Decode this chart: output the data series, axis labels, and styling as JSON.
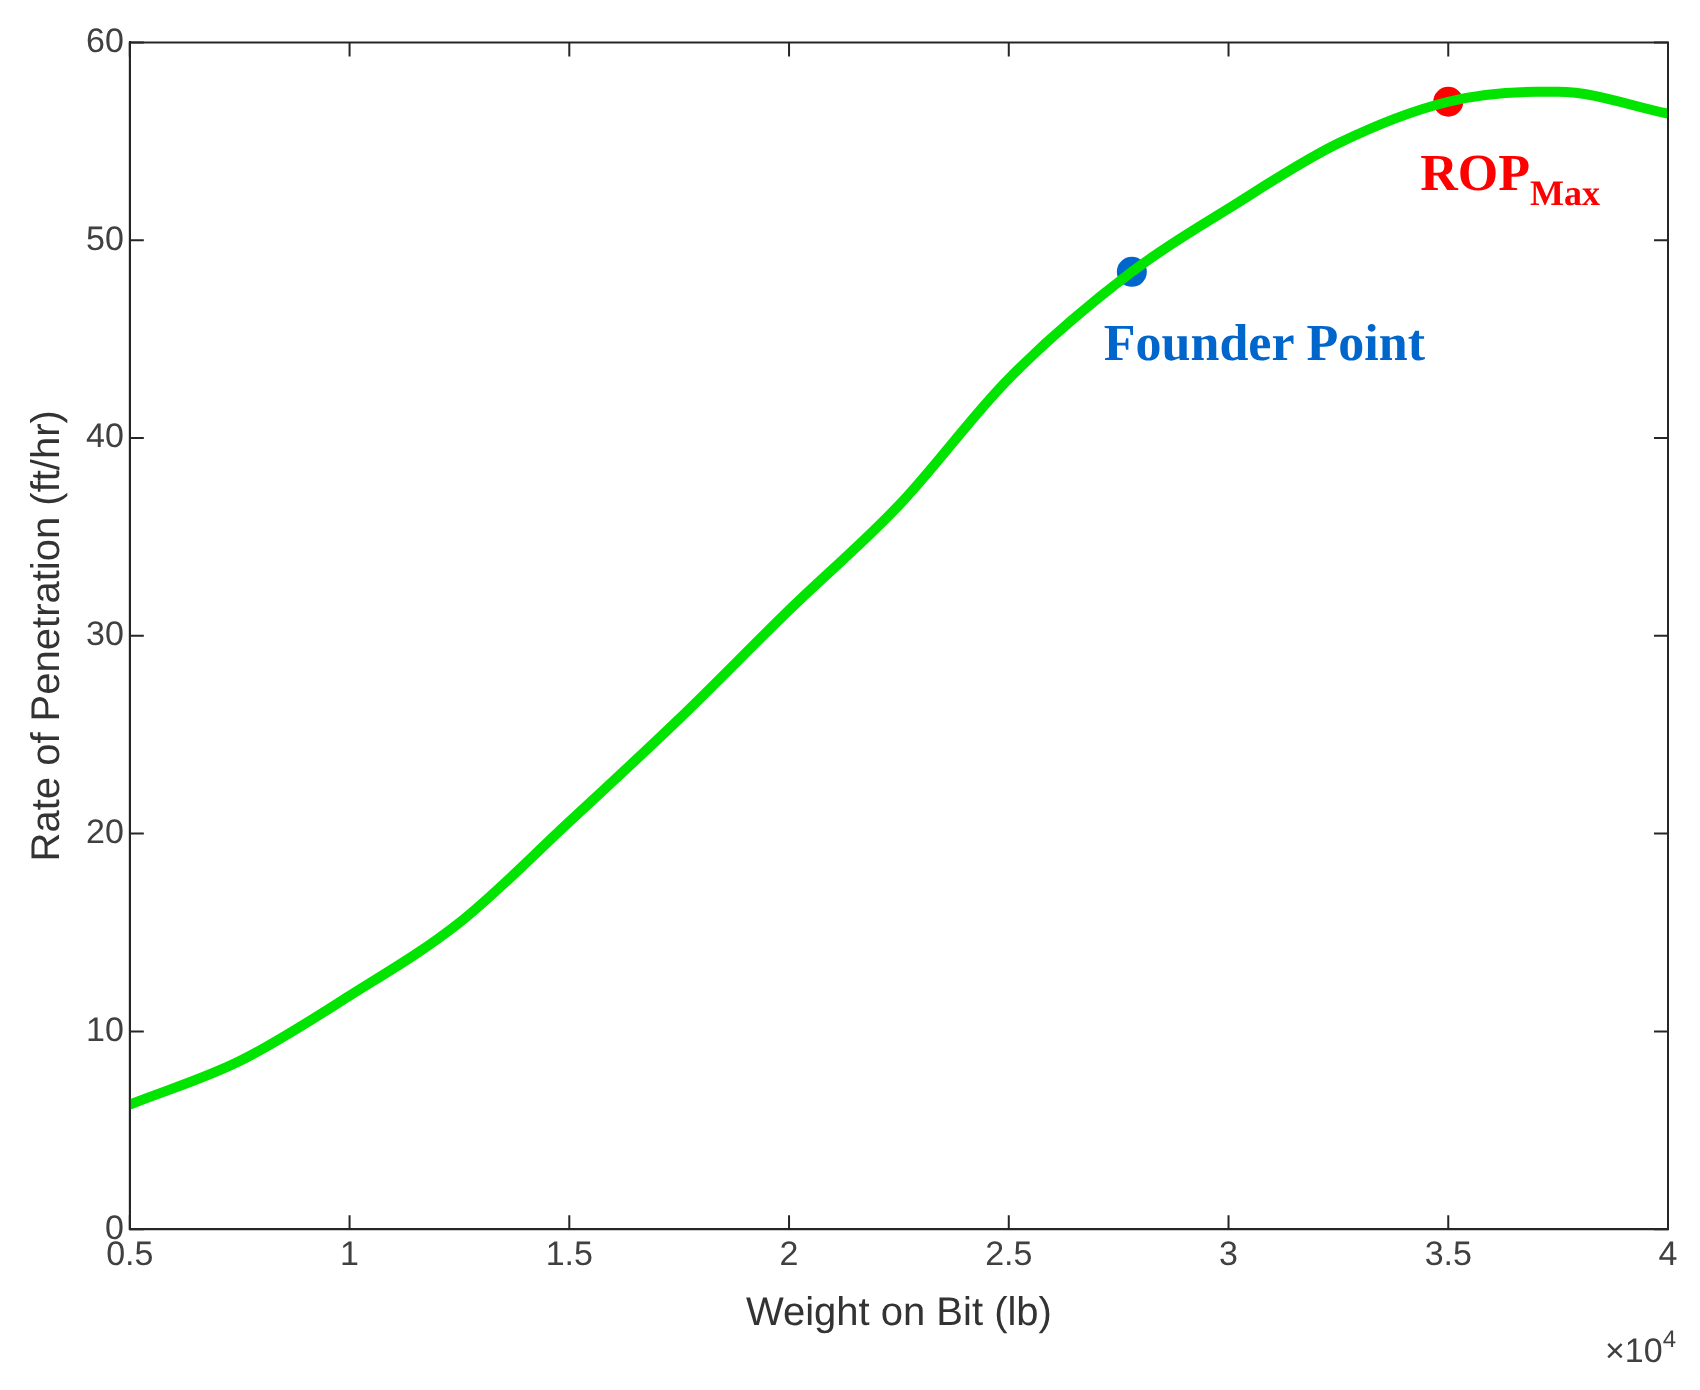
{
  "chart_data": {
    "type": "line",
    "xlabel": "Weight on Bit (lb)",
    "ylabel": "Rate of Penetration (ft/hr)",
    "xlim": [
      0.5,
      4
    ],
    "xticks": [
      0.5,
      1,
      1.5,
      2,
      2.5,
      3,
      3.5,
      4
    ],
    "ylim": [
      0,
      60
    ],
    "yticks": [
      0,
      10,
      20,
      30,
      40,
      50,
      60
    ],
    "grid": false,
    "legend": false,
    "line_style": "solid",
    "annotations": [
      "×10$^{4}$"
    ],
    "series": [
      {
        "marker": "none",
        "color": "#00e400",
        "x": [
          0.5,
          0.75,
          1,
          1.25,
          1.5,
          1.75,
          2,
          2.25,
          2.5,
          2.78,
          3,
          3.25,
          3.5,
          3.7,
          3.75,
          4
        ],
        "values": [
          6.3,
          8.5,
          11.8,
          15.5,
          20.6,
          25.8,
          31.3,
          36.6,
          43,
          48.4,
          51.6,
          54.9,
          57,
          57.5,
          57.5,
          56.4
        ]
      },
      {
        "type": "scatter",
        "marker": "circle",
        "name": "Founder Point",
        "color": "#0066cc",
        "x": [
          2.78
        ],
        "values": [
          48.4
        ]
      },
      {
        "type": "scatter",
        "marker": "circle",
        "name": "ROP$_{Max}$",
        "color": "#ff0000",
        "x": [
          3.5
        ],
        "values": [
          57
        ]
      }
    ]
  }
}
